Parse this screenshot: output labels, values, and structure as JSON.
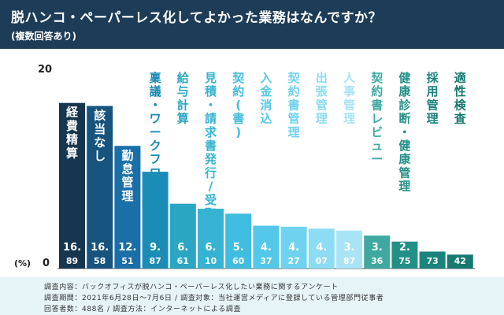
{
  "header": {
    "title": "脱ハンコ・ペーパーレス化してよかった業務はなんですか？",
    "subtitle": "(複数回答あり)"
  },
  "axis": {
    "top_tick": "20",
    "bottom_tick": "0",
    "unit": "(%)"
  },
  "chart_data": {
    "type": "bar",
    "title": "脱ハンコ・ペーパーレス化してよかった業務はなんですか？",
    "subtitle": "(複数回答あり)",
    "ylabel": "(%)",
    "ylim": [
      0,
      20
    ],
    "yticks": [
      0,
      20
    ],
    "categories": [
      "経費精算",
      "該当なし",
      "勤怠管理",
      "稟議・ワークフロー",
      "給与計算",
      "見積・請求書発行/受取",
      "契約(書)",
      "入金消込",
      "契約書管理",
      "出張管理",
      "人事管理",
      "契約書レビュー",
      "健康診断・健康管理",
      "採用管理",
      "適性検査"
    ],
    "values": [
      16.89,
      16.58,
      12.51,
      9.87,
      6.61,
      6.1,
      5.6,
      4.37,
      4.27,
      4.07,
      3.87,
      3.36,
      2.75,
      1.73,
      1.42
    ],
    "value_labels": [
      [
        "16.",
        "89"
      ],
      [
        "16.",
        "58"
      ],
      [
        "12.",
        "51"
      ],
      [
        "9.",
        "87"
      ],
      [
        "6.",
        "61"
      ],
      [
        "6.",
        "10"
      ],
      [
        "5.",
        "60"
      ],
      [
        "4.",
        "37"
      ],
      [
        "4.",
        "27"
      ],
      [
        "4.",
        "07"
      ],
      [
        "3.",
        "87"
      ],
      [
        "3.",
        "36"
      ],
      [
        "2.",
        "75"
      ],
      [
        "1.",
        "73"
      ],
      [
        "1.",
        "42"
      ]
    ],
    "colors": [
      "#163650",
      "#16537e",
      "#1a6fa8",
      "#1a8cb5",
      "#2aa6c2",
      "#36b3d2",
      "#3fbde0",
      "#54c8ea",
      "#6fd2ef",
      "#8cdcf3",
      "#a8e4f6",
      "#3fa9a1",
      "#239088",
      "#1a837b",
      "#177970"
    ]
  },
  "footer": {
    "line1": "調査内容：バックオフィスが脱ハンコ・ペーパーレス化したい業務に関するアンケート",
    "line2": "調査期間：2021年6月28日〜7月6日 / 調査対象：当社運営メディアに登録している管理部門従事者",
    "line3": "回答者数：488名 / 調査方法：インターネットによる調査"
  }
}
